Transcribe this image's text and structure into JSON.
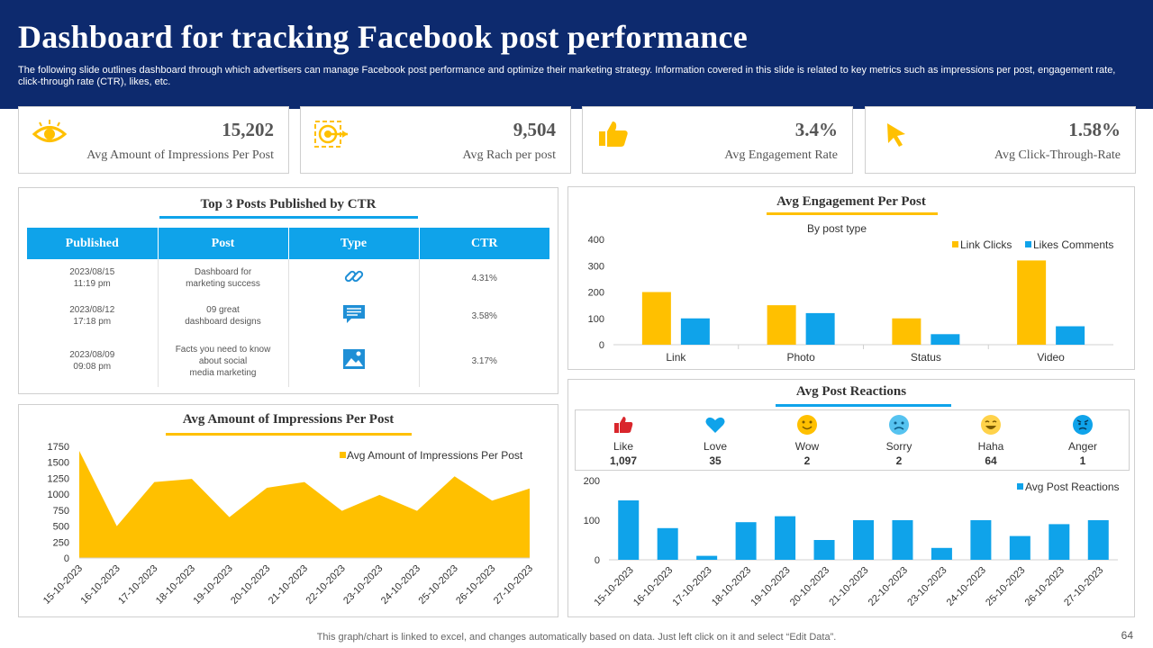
{
  "header": {
    "title": "Dashboard for tracking Facebook post performance",
    "description": "The following slide outlines dashboard through which advertisers can manage Facebook post performance and optimize their marketing strategy. Information covered in this slide is related to key metrics such as impressions per post, engagement rate, click-through rate (CTR), likes, etc."
  },
  "kpis": [
    {
      "value": "15,202",
      "label": "Avg Amount of Impressions Per Post",
      "icon": "eye-icon"
    },
    {
      "value": "9,504",
      "label": "Avg Rach per post",
      "icon": "target-icon"
    },
    {
      "value": "3.4%",
      "label": "Avg Engagement Rate",
      "icon": "thumbs-up-icon"
    },
    {
      "value": "1.58%",
      "label": "Avg Click-Through-Rate",
      "icon": "cursor-icon"
    }
  ],
  "top_posts": {
    "title": "Top 3 Posts Published  by CTR",
    "columns": [
      "Published",
      "Post",
      "Type",
      "CTR"
    ],
    "rows": [
      {
        "published": "2023/08/15\n11:19 pm",
        "post": "Dashboard for\nmarketing success",
        "type": "link-icon",
        "ctr": "4.31%"
      },
      {
        "published": "2023/08/12\n17:18 pm",
        "post": "09 great\ndashboard designs",
        "type": "status-icon",
        "ctr": "3.58%"
      },
      {
        "published": "2023/08/09\n09:08 pm",
        "post": "Facts you need to know\nabout social\nmedia marketing",
        "type": "photo-icon",
        "ctr": "3.17%"
      }
    ]
  },
  "reactions": {
    "title": "Avg Post Reactions",
    "items": [
      {
        "label": "Like",
        "count": "1,097",
        "icon": "like-icon"
      },
      {
        "label": "Love",
        "count": "35",
        "icon": "love-icon"
      },
      {
        "label": "Wow",
        "count": "2",
        "icon": "wow-icon"
      },
      {
        "label": "Sorry",
        "count": "2",
        "icon": "sorry-icon"
      },
      {
        "label": "Haha",
        "count": "64",
        "icon": "haha-icon"
      },
      {
        "label": "Anger",
        "count": "1",
        "icon": "anger-icon"
      }
    ]
  },
  "colors": {
    "navy": "#0d2a6e",
    "blue": "#0fa3ea",
    "yellow": "#ffc000"
  },
  "chart_data": [
    {
      "id": "engagement",
      "type": "bar",
      "title": "Avg Engagement  Per Post",
      "subtitle": "By post type",
      "categories": [
        "Link",
        "Photo",
        "Status",
        "Video"
      ],
      "series": [
        {
          "name": "Link Clicks",
          "values": [
            200,
            150,
            100,
            320
          ],
          "color": "#ffc000"
        },
        {
          "name": "Likes Comments",
          "values": [
            100,
            120,
            40,
            70
          ],
          "color": "#0fa3ea"
        }
      ],
      "ylim": [
        0,
        400
      ],
      "yticks": [
        "0",
        "100",
        "200",
        "300",
        "400"
      ],
      "legend": "top-right"
    },
    {
      "id": "impressions",
      "type": "area",
      "title": "Avg Amount  of Impressions Per Post",
      "categories": [
        "15-10-2023",
        "16-10-2023",
        "17-10-2023",
        "18-10-2023",
        "19-10-2023",
        "20-10-2023",
        "21-10-2023",
        "22-10-2023",
        "23-10-2023",
        "24-10-2023",
        "25-10-2023",
        "26-10-2023",
        "27-10-2023"
      ],
      "series": [
        {
          "name": "Avg Amount of Impressions Per Post",
          "values": [
            1680,
            500,
            1190,
            1240,
            640,
            1100,
            1190,
            740,
            990,
            740,
            1280,
            900,
            1090
          ],
          "color": "#ffc000"
        }
      ],
      "ylim": [
        0,
        1750
      ],
      "yticks": [
        "0",
        "250",
        "500",
        "750",
        "1000",
        "1250",
        "1500",
        "1750"
      ],
      "legend": "top-right"
    },
    {
      "id": "reactions",
      "type": "bar",
      "categories": [
        "15-10-2023",
        "16-10-2023",
        "17-10-2023",
        "18-10-2023",
        "19-10-2023",
        "20-10-2023",
        "21-10-2023",
        "22-10-2023",
        "23-10-2023",
        "24-10-2023",
        "25-10-2023",
        "26-10-2023",
        "27-10-2023"
      ],
      "series": [
        {
          "name": "Avg Post Reactions",
          "values": [
            150,
            80,
            10,
            95,
            110,
            50,
            100,
            100,
            30,
            100,
            60,
            90,
            100
          ],
          "color": "#0fa3ea"
        }
      ],
      "ylim": [
        0,
        200
      ],
      "yticks": [
        "0",
        "100",
        "200"
      ],
      "legend": "top-right"
    }
  ],
  "footer": {
    "note": "This graph/chart is linked to excel,  and changes automatically based on data. Just left click on it and select “Edit Data”.",
    "page": "64"
  }
}
